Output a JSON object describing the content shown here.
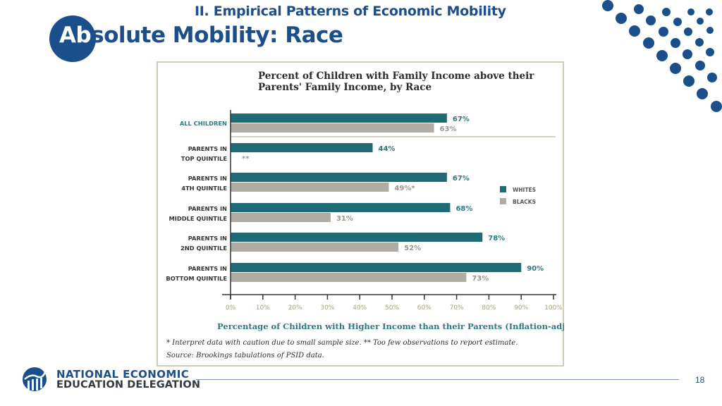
{
  "slide": {
    "section_title": "II. Empirical Patterns of Economic Mobility",
    "title_first": "Ab",
    "title_rest": "solute Mobility: Race",
    "page_number": "18",
    "org_name_line1": "NATIONAL ECONOMIC",
    "org_name_line2": "EDUCATION DELEGATION",
    "colors": {
      "brand_blue": "#1a4f8b",
      "whites_bar": "#1e6b75",
      "blacks_bar": "#b0aca3",
      "axis_tick_label": "#a6a07a"
    }
  },
  "chart_data": {
    "type": "bar",
    "orientation": "horizontal",
    "title_line1": "Percent of Children with Family Income above their",
    "title_line2": "Parents' Family Income, by Race",
    "xlabel": "Percentage of Children with Higher Income than their Parents (Inflation-adjusted)",
    "ylabel": "",
    "xlim": [
      0,
      100
    ],
    "xticks": [
      "0%",
      "10%",
      "20%",
      "30%",
      "40%",
      "50%",
      "60%",
      "70%",
      "80%",
      "90%",
      "100%"
    ],
    "categories": [
      {
        "line1": "ALL CHILDREN",
        "line2": ""
      },
      {
        "line1": "PARENTS IN",
        "line2": "TOP QUINTILE"
      },
      {
        "line1": "PARENTS IN",
        "line2": "4TH QUINTILE"
      },
      {
        "line1": "PARENTS IN",
        "line2": "MIDDLE QUINTILE"
      },
      {
        "line1": "PARENTS IN",
        "line2": "2ND QUINTILE"
      },
      {
        "line1": "PARENTS IN",
        "line2": "BOTTOM QUINTILE"
      }
    ],
    "series": [
      {
        "name": "WHITES",
        "color": "#1e6b75",
        "values": [
          67,
          44,
          67,
          68,
          78,
          90
        ],
        "labels": [
          "67%",
          "44%",
          "67%",
          "68%",
          "78%",
          "90%"
        ]
      },
      {
        "name": "BLACKS",
        "color": "#b0aca3",
        "values": [
          63,
          null,
          49,
          31,
          52,
          73
        ],
        "labels": [
          "63%",
          "**",
          "49%*",
          "31%",
          "52%",
          "73%"
        ]
      }
    ],
    "legend": {
      "position": "right",
      "entries": [
        "WHITES",
        "BLACKS"
      ]
    },
    "footnote": "* Interpret data with caution due to small sample size. ** Too few observations to report estimate.",
    "source": "Source: Brookings tabulations of PSID data.",
    "grid": false
  }
}
